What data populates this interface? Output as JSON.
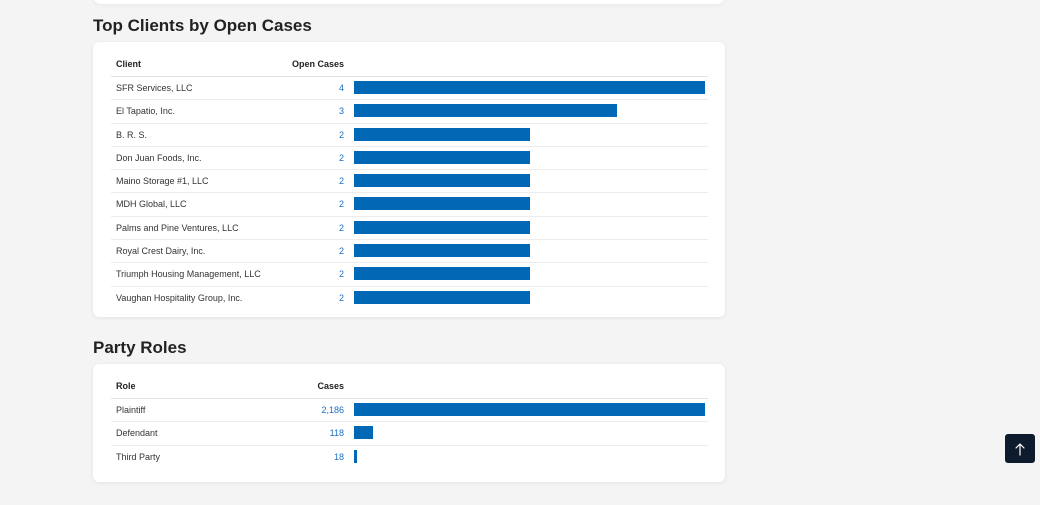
{
  "sections": {
    "clients": {
      "title": "Top Clients by Open Cases",
      "col_name": "Client",
      "col_value": "Open Cases",
      "max": 4,
      "rows": [
        {
          "name": "SFR Services, LLC",
          "value": 4
        },
        {
          "name": "El Tapatio, Inc.",
          "value": 3
        },
        {
          "name": "B. R. S.",
          "value": 2
        },
        {
          "name": "Don Juan Foods, Inc.",
          "value": 2
        },
        {
          "name": "Maino Storage #1, LLC",
          "value": 2
        },
        {
          "name": "MDH Global, LLC",
          "value": 2
        },
        {
          "name": "Palms and Pine Ventures, LLC",
          "value": 2
        },
        {
          "name": "Royal Crest Dairy, Inc.",
          "value": 2
        },
        {
          "name": "Triumph Housing Management, LLC",
          "value": 2
        },
        {
          "name": "Vaughan Hospitality Group, Inc.",
          "value": 2
        }
      ]
    },
    "roles": {
      "title": "Party Roles",
      "col_name": "Role",
      "col_value": "Cases",
      "max": 2186,
      "rows": [
        {
          "name": "Plaintiff",
          "value": 2186,
          "display": "2,186"
        },
        {
          "name": "Defendant",
          "value": 118,
          "display": "118"
        },
        {
          "name": "Third Party",
          "value": 18,
          "display": "18"
        }
      ]
    }
  },
  "colors": {
    "bar": "#0068b4",
    "value_text": "#1a6fc0",
    "scroll_button": "#0d1b2c"
  },
  "scroll_top": {
    "icon": "arrow-up-icon"
  }
}
